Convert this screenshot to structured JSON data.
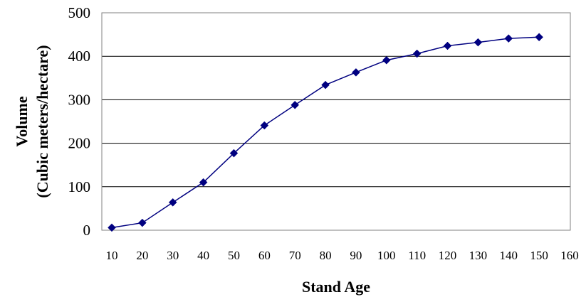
{
  "chart_data": {
    "type": "line",
    "title": "",
    "xlabel": "Stand Age",
    "ylabel_lines": [
      "Volume",
      "(Cubic meters/hectare)"
    ],
    "x_ticks": [
      "10",
      "20",
      "30",
      "40",
      "50",
      "60",
      "70",
      "80",
      "90",
      "100",
      "110",
      "120",
      "130",
      "140",
      "150",
      "160"
    ],
    "y_ticks": [
      "0",
      "100",
      "200",
      "300",
      "400",
      "500"
    ],
    "xlim": [
      10,
      160
    ],
    "ylim": [
      0,
      500
    ],
    "grid": "horizontal major gridlines",
    "legend": "none",
    "series_color": "#000080",
    "series": [
      {
        "x": [
          10,
          20,
          30,
          40,
          50,
          60,
          70,
          80,
          90,
          100,
          110,
          120,
          130,
          140,
          150
        ],
        "y": [
          6,
          17,
          64,
          110,
          177,
          241,
          288,
          334,
          363,
          391,
          406,
          424,
          432,
          441,
          444
        ]
      }
    ]
  }
}
